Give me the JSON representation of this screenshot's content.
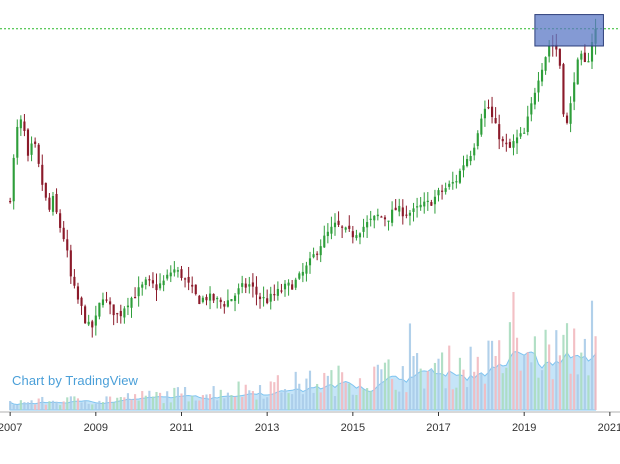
{
  "brand": {
    "watermark": "Chart by TradingView"
  },
  "colors": {
    "up": "#2e9e3a",
    "down": "#8b1a2a",
    "vol_up": "#a9dcbf",
    "vol_down": "#f2b9bf",
    "vol_neutral": "#a9cbe8",
    "vol_avg": "#7fc4f0",
    "reference_line": "#29b829",
    "highlight_fill": "#5b78c6",
    "axis": "#333333"
  },
  "chart_data": {
    "type": "candlestick",
    "interval": "monthly",
    "title": "",
    "xlabel": "",
    "ylabel": "",
    "x_ticks": [
      "2007",
      "2009",
      "2011",
      "2013",
      "2015",
      "2017",
      "2019",
      "2021"
    ],
    "x_range": [
      2006.95,
      2021.05
    ],
    "price_range": [
      0.0,
      1.0
    ],
    "price_note": "price axis is unlabeled; values are relative (0 = lowest, 1 = highest visible)",
    "reference_level": 0.985,
    "highlight_zone": {
      "x_start": 2019.25,
      "x_end": 2020.85,
      "y_low": 0.93,
      "y_high": 1.03
    },
    "close_path": [
      [
        2007.0,
        0.45
      ],
      [
        2007.15,
        0.66
      ],
      [
        2007.3,
        0.7
      ],
      [
        2007.4,
        0.56
      ],
      [
        2007.55,
        0.63
      ],
      [
        2007.7,
        0.52
      ],
      [
        2007.8,
        0.46
      ],
      [
        2007.9,
        0.4
      ],
      [
        2008.0,
        0.44
      ],
      [
        2008.15,
        0.36
      ],
      [
        2008.3,
        0.3
      ],
      [
        2008.4,
        0.2
      ],
      [
        2008.55,
        0.13
      ],
      [
        2008.65,
        0.1
      ],
      [
        2008.8,
        0.04
      ],
      [
        2008.9,
        0.03
      ],
      [
        2009.0,
        0.06
      ],
      [
        2009.15,
        0.14
      ],
      [
        2009.3,
        0.1
      ],
      [
        2009.45,
        0.08
      ],
      [
        2009.55,
        0.07
      ],
      [
        2009.7,
        0.11
      ],
      [
        2009.85,
        0.13
      ],
      [
        2010.0,
        0.15
      ],
      [
        2010.2,
        0.18
      ],
      [
        2010.4,
        0.16
      ],
      [
        2010.6,
        0.18
      ],
      [
        2010.8,
        0.22
      ],
      [
        2011.0,
        0.2
      ],
      [
        2011.2,
        0.16
      ],
      [
        2011.4,
        0.12
      ],
      [
        2011.6,
        0.13
      ],
      [
        2011.8,
        0.12
      ],
      [
        2012.0,
        0.11
      ],
      [
        2012.2,
        0.13
      ],
      [
        2012.4,
        0.16
      ],
      [
        2012.6,
        0.17
      ],
      [
        2012.8,
        0.13
      ],
      [
        2013.0,
        0.12
      ],
      [
        2013.2,
        0.14
      ],
      [
        2013.4,
        0.16
      ],
      [
        2013.6,
        0.17
      ],
      [
        2013.8,
        0.2
      ],
      [
        2014.0,
        0.24
      ],
      [
        2014.2,
        0.29
      ],
      [
        2014.4,
        0.33
      ],
      [
        2014.6,
        0.36
      ],
      [
        2014.8,
        0.34
      ],
      [
        2015.0,
        0.33
      ],
      [
        2015.2,
        0.35
      ],
      [
        2015.4,
        0.37
      ],
      [
        2015.6,
        0.39
      ],
      [
        2015.8,
        0.38
      ],
      [
        2016.0,
        0.41
      ],
      [
        2016.2,
        0.4
      ],
      [
        2016.4,
        0.4
      ],
      [
        2016.6,
        0.42
      ],
      [
        2016.8,
        0.43
      ],
      [
        2017.0,
        0.46
      ],
      [
        2017.2,
        0.48
      ],
      [
        2017.4,
        0.5
      ],
      [
        2017.6,
        0.56
      ],
      [
        2017.8,
        0.6
      ],
      [
        2018.0,
        0.71
      ],
      [
        2018.15,
        0.74
      ],
      [
        2018.3,
        0.68
      ],
      [
        2018.5,
        0.62
      ],
      [
        2018.65,
        0.6
      ],
      [
        2018.8,
        0.63
      ],
      [
        2019.0,
        0.65
      ],
      [
        2019.15,
        0.73
      ],
      [
        2019.3,
        0.82
      ],
      [
        2019.45,
        0.88
      ],
      [
        2019.6,
        0.94
      ],
      [
        2019.75,
        0.92
      ],
      [
        2019.85,
        0.86
      ],
      [
        2019.95,
        0.66
      ],
      [
        2020.05,
        0.7
      ],
      [
        2020.15,
        0.82
      ],
      [
        2020.3,
        0.9
      ],
      [
        2020.45,
        0.86
      ],
      [
        2020.6,
        0.96
      ],
      [
        2020.7,
        0.99
      ]
    ]
  }
}
